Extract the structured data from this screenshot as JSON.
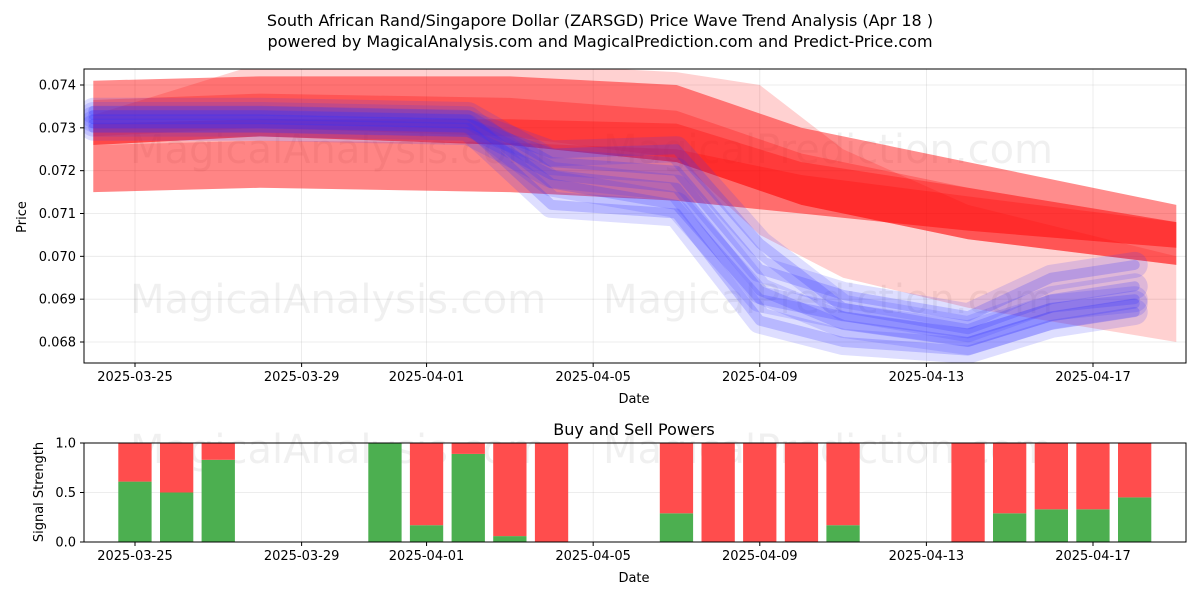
{
  "title_line1": "South African Rand/Singapore Dollar (ZARSGD) Price Wave Trend Analysis (Apr 18 )",
  "title_line2": "powered by MagicalAnalysis.com and MagicalPrediction.com and Predict-Price.com",
  "watermarks": [
    "MagicalAnalysis.com",
    "MagicalPrediction.com"
  ],
  "colors": {
    "red": "#ff0000",
    "blue": "#3333ff",
    "buy": "#4caf50",
    "sell": "#ff4d4d"
  },
  "chart_data": [
    {
      "type": "area",
      "xlabel": "Date",
      "ylabel": "Price",
      "ylim": [
        0.0675,
        0.0743
      ],
      "xlim": [
        "2025-03-24",
        "2025-04-19"
      ],
      "grid": true,
      "xticks": [
        "2025-03-25",
        "2025-03-29",
        "2025-04-01",
        "2025-04-05",
        "2025-04-09",
        "2025-04-13",
        "2025-04-17"
      ],
      "yticks": [
        0.068,
        0.069,
        0.07,
        0.071,
        0.072,
        0.073,
        0.074
      ],
      "red_bands": [
        {
          "x": [
            "2025-03-24",
            "2025-03-28",
            "2025-04-03",
            "2025-04-07",
            "2025-04-10",
            "2025-04-14",
            "2025-04-19"
          ],
          "upper": [
            0.0741,
            0.0742,
            0.0742,
            0.074,
            0.073,
            0.0722,
            0.0712
          ],
          "lower": [
            0.0726,
            0.0728,
            0.0726,
            0.0722,
            0.0712,
            0.0704,
            0.0698
          ]
        },
        {
          "x": [
            "2025-03-24",
            "2025-03-28",
            "2025-04-03",
            "2025-04-07",
            "2025-04-10",
            "2025-04-14",
            "2025-04-19"
          ],
          "upper": [
            0.0731,
            0.0732,
            0.0732,
            0.0731,
            0.0722,
            0.0716,
            0.0708
          ],
          "lower": [
            0.0715,
            0.0716,
            0.0715,
            0.0713,
            0.071,
            0.0706,
            0.0702
          ]
        },
        {
          "x": [
            "2025-03-24",
            "2025-03-28",
            "2025-04-03",
            "2025-04-07",
            "2025-04-09",
            "2025-04-11",
            "2025-04-14",
            "2025-04-19"
          ],
          "upper": [
            0.0733,
            0.0745,
            0.0745,
            0.0743,
            0.074,
            0.0725,
            0.0712,
            0.07
          ],
          "lower": [
            0.0728,
            0.073,
            0.0728,
            0.0723,
            0.0705,
            0.0695,
            0.0688,
            0.068
          ]
        }
      ],
      "blue_lines": [
        {
          "x": [
            "2025-03-24",
            "2025-03-28",
            "2025-04-02",
            "2025-04-04",
            "2025-04-07",
            "2025-04-09",
            "2025-04-11",
            "2025-04-14",
            "2025-04-16",
            "2025-04-18"
          ],
          "y": [
            0.0732,
            0.0732,
            0.0731,
            0.0724,
            0.0725,
            0.0703,
            0.0688,
            0.0683,
            0.069,
            0.0693
          ]
        },
        {
          "x": [
            "2025-03-24",
            "2025-03-28",
            "2025-04-02",
            "2025-04-04",
            "2025-04-07",
            "2025-04-09",
            "2025-04-11",
            "2025-04-14",
            "2025-04-16",
            "2025-04-18"
          ],
          "y": [
            0.0733,
            0.0733,
            0.0732,
            0.0717,
            0.0712,
            0.069,
            0.0686,
            0.0682,
            0.0688,
            0.069
          ]
        },
        {
          "x": [
            "2025-03-24",
            "2025-03-28",
            "2025-04-02",
            "2025-04-04",
            "2025-04-07",
            "2025-04-09",
            "2025-04-11",
            "2025-04-14",
            "2025-04-16",
            "2025-04-18"
          ],
          "y": [
            0.0731,
            0.0731,
            0.073,
            0.0712,
            0.071,
            0.0685,
            0.068,
            0.0678,
            0.0684,
            0.0687
          ]
        },
        {
          "x": [
            "2025-03-24",
            "2025-03-28",
            "2025-04-02",
            "2025-04-04",
            "2025-04-07",
            "2025-04-09",
            "2025-04-11",
            "2025-04-14",
            "2025-04-16",
            "2025-04-18"
          ],
          "y": [
            0.0734,
            0.0734,
            0.0733,
            0.0722,
            0.072,
            0.0697,
            0.0691,
            0.0686,
            0.0695,
            0.0698
          ]
        },
        {
          "x": [
            "2025-03-24",
            "2025-03-28",
            "2025-04-02",
            "2025-04-04",
            "2025-04-07",
            "2025-04-09",
            "2025-04-11",
            "2025-04-14",
            "2025-04-16",
            "2025-04-18"
          ],
          "y": [
            0.073,
            0.073,
            0.0729,
            0.0719,
            0.0716,
            0.0692,
            0.0684,
            0.068,
            0.0686,
            0.0689
          ]
        }
      ]
    },
    {
      "type": "bar",
      "title": "Buy and Sell Powers",
      "xlabel": "Date",
      "ylabel": "Signal Strength",
      "ylim": [
        0,
        1.0
      ],
      "yticks": [
        0.0,
        0.5,
        1.0
      ],
      "xticks": [
        "2025-03-25",
        "2025-03-29",
        "2025-04-01",
        "2025-04-05",
        "2025-04-09",
        "2025-04-13",
        "2025-04-17"
      ],
      "dates": [
        "2025-03-25",
        "2025-03-26",
        "2025-03-27",
        "2025-03-31",
        "2025-04-01",
        "2025-04-02",
        "2025-04-03",
        "2025-04-04",
        "2025-04-07",
        "2025-04-08",
        "2025-04-09",
        "2025-04-10",
        "2025-04-11",
        "2025-04-14",
        "2025-04-15",
        "2025-04-16",
        "2025-04-17",
        "2025-04-18"
      ],
      "series": [
        {
          "name": "Buy",
          "values": [
            0.61,
            0.5,
            0.83,
            1.0,
            0.17,
            0.89,
            0.06,
            0.0,
            0.29,
            0.0,
            0.0,
            0.0,
            0.17,
            0.0,
            0.29,
            0.33,
            0.33,
            0.45
          ]
        },
        {
          "name": "Sell",
          "values": [
            0.39,
            0.5,
            0.17,
            0.0,
            0.83,
            0.11,
            0.94,
            1.0,
            0.71,
            1.0,
            1.0,
            1.0,
            0.83,
            1.0,
            0.71,
            0.67,
            0.67,
            0.55
          ]
        }
      ]
    }
  ]
}
